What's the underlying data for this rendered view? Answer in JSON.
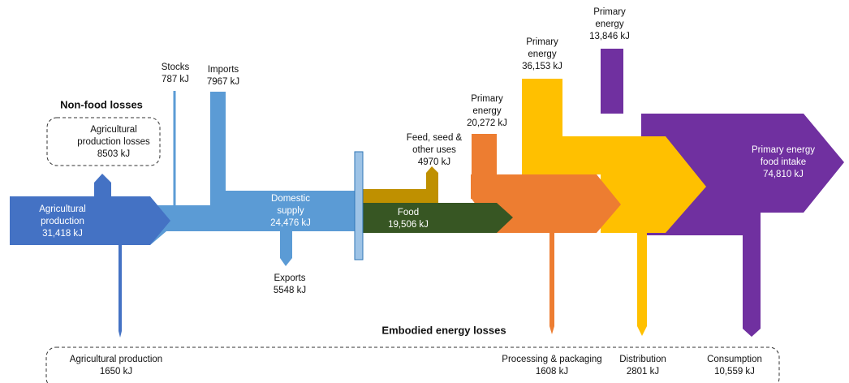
{
  "headings": {
    "non_food": "Non-food losses",
    "embodied": "Embodied energy losses"
  },
  "labels": [
    {
      "lines": [
        "Agricultural",
        "production",
        "31,418 kJ"
      ]
    },
    {
      "lines": [
        "Agricultural",
        "production losses",
        "8503 kJ"
      ]
    },
    {
      "lines": [
        "Stocks",
        "787 kJ"
      ]
    },
    {
      "lines": [
        "Imports",
        "7967 kJ"
      ]
    },
    {
      "lines": [
        "Domestic",
        "supply",
        "24,476 kJ"
      ]
    },
    {
      "lines": [
        "Exports",
        "5548 kJ"
      ]
    },
    {
      "lines": [
        "Feed, seed &",
        "other uses",
        "4970 kJ"
      ]
    },
    {
      "lines": [
        "Food",
        "19,506 kJ"
      ]
    },
    {
      "lines": [
        "Primary",
        "energy",
        "20,272 kJ"
      ]
    },
    {
      "lines": [
        "Primary",
        "energy",
        "36,153 kJ"
      ]
    },
    {
      "lines": [
        "Primary",
        "energy",
        "13,846 kJ"
      ]
    },
    {
      "lines": [
        "Primary energy",
        "food intake",
        "74,810 kJ"
      ]
    },
    {
      "lines": [
        "Agricultural production",
        "1650 kJ"
      ]
    },
    {
      "lines": [
        "Processing & packaging",
        "1608 kJ"
      ]
    },
    {
      "lines": [
        "Distribution",
        "2801 kJ"
      ]
    },
    {
      "lines": [
        "Consumption",
        "10,559 kJ"
      ]
    }
  ]
}
